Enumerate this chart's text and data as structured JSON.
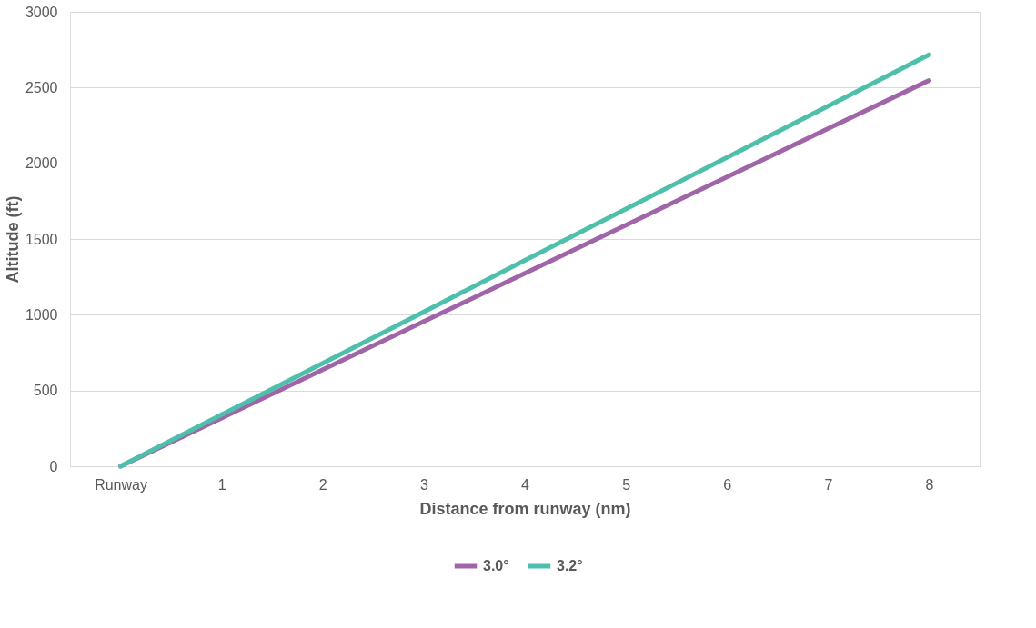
{
  "chart_data": {
    "type": "line",
    "xlabel": "Distance from runway (nm)",
    "ylabel": "Altitude (ft)",
    "categories": [
      "Runway",
      "1",
      "2",
      "3",
      "4",
      "5",
      "6",
      "7",
      "8"
    ],
    "series": [
      {
        "name": "3.0°",
        "color": "#a064a8",
        "values": [
          0,
          318,
          637,
          955,
          1274,
          1592,
          1910,
          2229,
          2547
        ]
      },
      {
        "name": "3.2°",
        "color": "#4dbfaa",
        "values": [
          0,
          340,
          679,
          1019,
          1359,
          1698,
          2038,
          2378,
          2717
        ]
      }
    ],
    "ylim": [
      0,
      3000
    ],
    "yticks": [
      0,
      500,
      1000,
      1500,
      2000,
      2500,
      3000
    ],
    "grid": "y",
    "legend": "bottom",
    "marker": "none",
    "line_style": "solid"
  }
}
